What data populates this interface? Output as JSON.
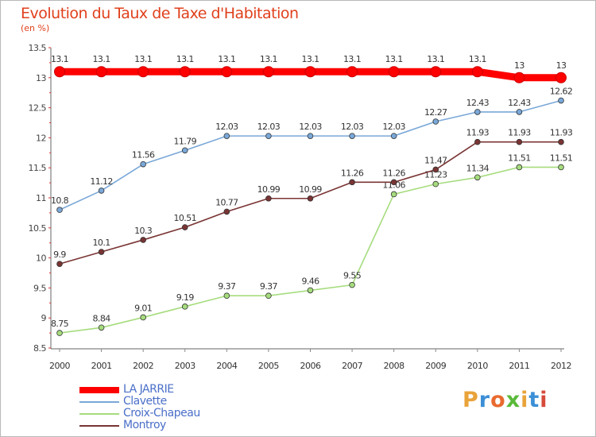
{
  "chart_data": {
    "type": "line",
    "title": "Evolution du Taux de Taxe d'Habitation",
    "subtitle": "(en %)",
    "x": [
      "2000",
      "2001",
      "2002",
      "2003",
      "2004",
      "2005",
      "2006",
      "2007",
      "2008",
      "2009",
      "2010",
      "2011",
      "2012"
    ],
    "ylim": [
      8.5,
      13.5
    ],
    "yticks": [
      "8.5",
      "9",
      "9.5",
      "10",
      "10.5",
      "11",
      "11.5",
      "12",
      "12.5",
      "13",
      "13.5"
    ],
    "grid": false,
    "legend_position": "bottom-left",
    "series": [
      {
        "name": "LA JARRIE",
        "color": "#ff0000",
        "values": [
          13.1,
          13.1,
          13.1,
          13.1,
          13.1,
          13.1,
          13.1,
          13.1,
          13.1,
          13.1,
          13.1,
          13,
          13
        ],
        "labels": [
          "13.1",
          "13.1",
          "13.1",
          "13.1",
          "13.1",
          "13.1",
          "13.1",
          "13.1",
          "13.1",
          "13.1",
          "13.1",
          "13",
          "13"
        ]
      },
      {
        "name": "Clavette",
        "color": "#7aa8d8",
        "values": [
          10.8,
          11.12,
          11.56,
          11.79,
          12.03,
          12.03,
          12.03,
          12.03,
          12.03,
          12.27,
          12.43,
          12.43,
          12.62
        ],
        "labels": [
          "10.8",
          "11.12",
          "11.56",
          "11.79",
          "12.03",
          "12.03",
          "12.03",
          "12.03",
          "12.03",
          "12.27",
          "12.43",
          "12.43",
          "12.62"
        ]
      },
      {
        "name": "Croix-Chapeau",
        "color": "#a6dc7e",
        "values": [
          8.75,
          8.84,
          9.01,
          9.19,
          9.37,
          9.37,
          9.46,
          9.55,
          11.06,
          11.23,
          11.34,
          11.51,
          11.51
        ],
        "labels": [
          "8.75",
          "8.84",
          "9.01",
          "9.19",
          "9.37",
          "9.37",
          "9.46",
          "9.55",
          "11.06",
          "11.23",
          "11.34",
          "11.51",
          "11.51"
        ]
      },
      {
        "name": "Montroy",
        "color": "#7a3434",
        "values": [
          9.9,
          10.1,
          10.3,
          10.51,
          10.77,
          10.99,
          10.99,
          11.26,
          11.26,
          11.47,
          11.93,
          11.93,
          11.93
        ],
        "labels": [
          "9.9",
          "10.1",
          "10.3",
          "10.51",
          "10.77",
          "10.99",
          "10.99",
          "11.26",
          "11.26",
          "11.47",
          "11.93",
          "11.93",
          "11.93"
        ]
      }
    ]
  },
  "brand": {
    "text": "Proxiti",
    "letter_colors": [
      "#e8a33a",
      "#3b8fd6",
      "#e86a2e",
      "#5aba3a",
      "#e8a33a",
      "#3b8fd6",
      "#d64a3a"
    ]
  }
}
